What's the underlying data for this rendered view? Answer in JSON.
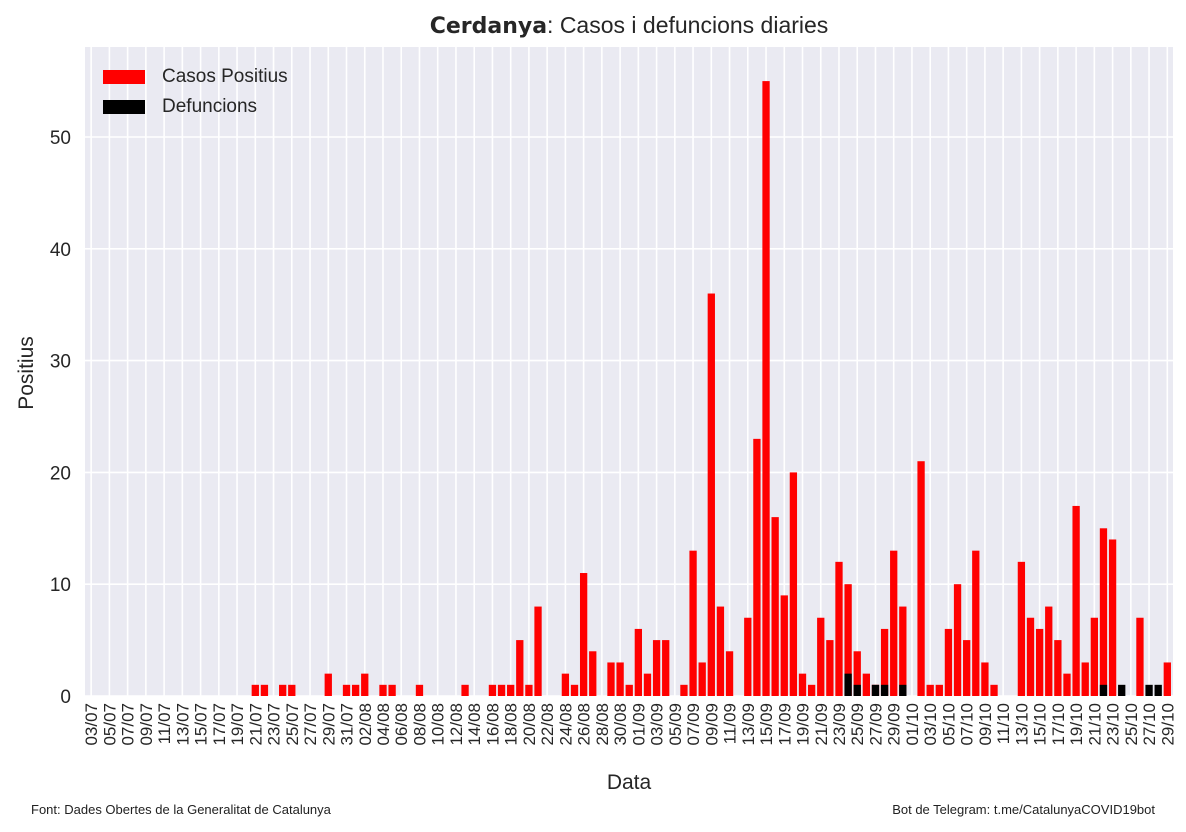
{
  "chart_data": {
    "type": "bar",
    "title_bold": "Cerdanya",
    "title_rest": ": Casos i defuncions diaries",
    "xlabel": "Data",
    "ylabel": "Positius",
    "ylim": [
      0,
      57
    ],
    "yticks": [
      0,
      10,
      20,
      30,
      40,
      50
    ],
    "grid": true,
    "legend_position": "top-left",
    "categories": [
      "03/07",
      "04/07",
      "05/07",
      "06/07",
      "07/07",
      "08/07",
      "09/07",
      "10/07",
      "11/07",
      "12/07",
      "13/07",
      "14/07",
      "15/07",
      "16/07",
      "17/07",
      "18/07",
      "19/07",
      "20/07",
      "21/07",
      "22/07",
      "23/07",
      "24/07",
      "25/07",
      "26/07",
      "27/07",
      "28/07",
      "29/07",
      "30/07",
      "31/07",
      "01/08",
      "02/08",
      "03/08",
      "04/08",
      "05/08",
      "06/08",
      "07/08",
      "08/08",
      "09/08",
      "10/08",
      "11/08",
      "12/08",
      "13/08",
      "14/08",
      "15/08",
      "16/08",
      "17/08",
      "18/08",
      "19/08",
      "20/08",
      "21/08",
      "22/08",
      "23/08",
      "24/08",
      "25/08",
      "26/08",
      "27/08",
      "28/08",
      "29/08",
      "30/08",
      "31/08",
      "01/09",
      "02/09",
      "03/09",
      "04/09",
      "05/09",
      "06/09",
      "07/09",
      "08/09",
      "09/09",
      "10/09",
      "11/09",
      "12/09",
      "13/09",
      "14/09",
      "15/09",
      "16/09",
      "17/09",
      "18/09",
      "19/09",
      "20/09",
      "21/09",
      "22/09",
      "23/09",
      "24/09",
      "25/09",
      "26/09",
      "27/09",
      "28/09",
      "29/09",
      "30/09",
      "01/10",
      "02/10",
      "03/10",
      "04/10",
      "05/10",
      "06/10",
      "07/10",
      "08/10",
      "09/10",
      "10/10",
      "11/10",
      "12/10",
      "13/10",
      "14/10",
      "15/10",
      "16/10",
      "17/10",
      "18/10",
      "19/10",
      "20/10",
      "21/10",
      "22/10",
      "23/10",
      "24/10",
      "25/10",
      "26/10",
      "27/10",
      "28/10",
      "29/10",
      "30/10"
    ],
    "xtick_labels": [
      "03/07",
      "05/07",
      "07/07",
      "09/07",
      "11/07",
      "13/07",
      "15/07",
      "17/07",
      "19/07",
      "21/07",
      "23/07",
      "25/07",
      "27/07",
      "29/07",
      "31/07",
      "02/08",
      "04/08",
      "06/08",
      "08/08",
      "10/08",
      "12/08",
      "14/08",
      "16/08",
      "18/08",
      "20/08",
      "22/08",
      "24/08",
      "26/08",
      "28/08",
      "30/08",
      "01/09",
      "03/09",
      "05/09",
      "07/09",
      "09/09",
      "11/09",
      "13/09",
      "15/09",
      "17/09",
      "19/09",
      "21/09",
      "23/09",
      "25/09",
      "27/09",
      "29/09",
      "01/10",
      "03/10",
      "05/10",
      "07/10",
      "09/10",
      "11/10",
      "13/10",
      "15/10",
      "17/10",
      "19/10",
      "21/10",
      "23/10",
      "25/10",
      "27/10",
      "29/10"
    ],
    "series": [
      {
        "name": "Casos Positius",
        "color": "#ff0000",
        "values": [
          0,
          0,
          0,
          0,
          0,
          0,
          0,
          0,
          0,
          0,
          0,
          0,
          0,
          0,
          0,
          0,
          0,
          0,
          1,
          1,
          0,
          1,
          1,
          0,
          0,
          0,
          2,
          0,
          1,
          1,
          2,
          0,
          1,
          1,
          0,
          0,
          1,
          0,
          0,
          0,
          0,
          1,
          0,
          0,
          1,
          1,
          1,
          5,
          1,
          8,
          0,
          0,
          2,
          1,
          11,
          4,
          0,
          3,
          3,
          1,
          6,
          2,
          5,
          5,
          0,
          1,
          13,
          3,
          36,
          8,
          4,
          0,
          7,
          23,
          55,
          16,
          9,
          20,
          2,
          1,
          7,
          5,
          12,
          10,
          4,
          2,
          1,
          6,
          13,
          8,
          0,
          21,
          1,
          1,
          6,
          10,
          5,
          13,
          3,
          1,
          0,
          0,
          12,
          7,
          6,
          8,
          5,
          2,
          17,
          3,
          7,
          15,
          14,
          0,
          0,
          7,
          0,
          0,
          3,
          0
        ]
      },
      {
        "name": "Defuncions",
        "color": "#000000",
        "values": [
          0,
          0,
          0,
          0,
          0,
          0,
          0,
          0,
          0,
          0,
          0,
          0,
          0,
          0,
          0,
          0,
          0,
          0,
          0,
          0,
          0,
          0,
          0,
          0,
          0,
          0,
          0,
          0,
          0,
          0,
          0,
          0,
          0,
          0,
          0,
          0,
          0,
          0,
          0,
          0,
          0,
          0,
          0,
          0,
          0,
          0,
          0,
          0,
          0,
          0,
          0,
          0,
          0,
          0,
          0,
          0,
          0,
          0,
          0,
          0,
          0,
          0,
          0,
          0,
          0,
          0,
          0,
          0,
          0,
          0,
          0,
          0,
          0,
          0,
          0,
          0,
          0,
          0,
          0,
          0,
          0,
          0,
          0,
          2,
          1,
          0,
          1,
          1,
          0,
          1,
          0,
          0,
          0,
          0,
          0,
          0,
          0,
          0,
          0,
          0,
          0,
          0,
          0,
          0,
          0,
          0,
          0,
          0,
          0,
          0,
          0,
          1,
          0,
          1,
          0,
          0,
          1,
          1,
          0,
          0
        ]
      }
    ]
  },
  "footer": {
    "source": "Font: Dades Obertes de la Generalitat de Catalunya",
    "bot": "Bot de Telegram: t.me/CatalunyaCOVID19bot"
  }
}
